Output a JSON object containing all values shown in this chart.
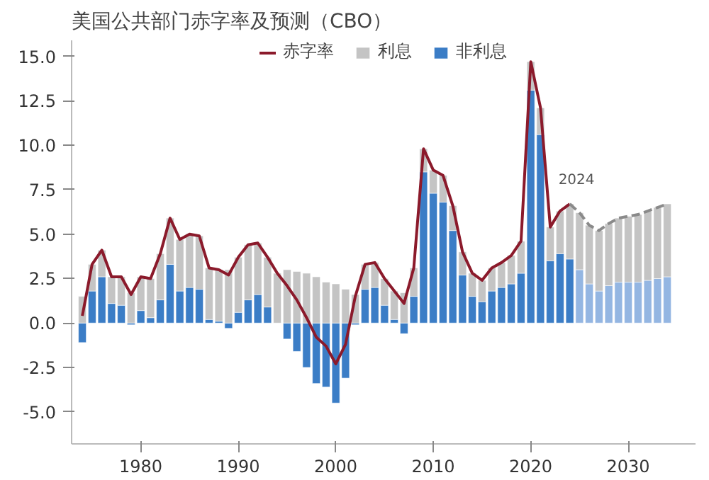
{
  "chart_data": {
    "type": "bar",
    "stacked": true,
    "title": "美国公共部门赤字率及预测（CBO）",
    "x": [
      1974,
      1975,
      1976,
      1977,
      1978,
      1979,
      1980,
      1981,
      1982,
      1983,
      1984,
      1985,
      1986,
      1987,
      1988,
      1989,
      1990,
      1991,
      1992,
      1993,
      1994,
      1995,
      1996,
      1997,
      1998,
      1999,
      2000,
      2001,
      2002,
      2003,
      2004,
      2005,
      2006,
      2007,
      2008,
      2009,
      2010,
      2011,
      2012,
      2013,
      2014,
      2015,
      2016,
      2017,
      2018,
      2019,
      2020,
      2021,
      2022,
      2023,
      2024,
      2025,
      2026,
      2027,
      2028,
      2029,
      2030,
      2031,
      2032,
      2033,
      2034
    ],
    "series": [
      {
        "name": "非利息",
        "color": "#3b7dc6",
        "colors": [
          "#3b7dc6",
          "#3b7dc6",
          "#3b7dc6",
          "#3b7dc6",
          "#3b7dc6",
          "#3b7dc6",
          "#3b7dc6",
          "#3b7dc6",
          "#3b7dc6",
          "#3b7dc6",
          "#3b7dc6",
          "#3b7dc6",
          "#3b7dc6",
          "#3b7dc6",
          "#3b7dc6",
          "#3b7dc6",
          "#3b7dc6",
          "#3b7dc6",
          "#3b7dc6",
          "#3b7dc6",
          "#3b7dc6",
          "#3b7dc6",
          "#3b7dc6",
          "#3b7dc6",
          "#3b7dc6",
          "#3b7dc6",
          "#3b7dc6",
          "#3b7dc6",
          "#3b7dc6",
          "#3b7dc6",
          "#3b7dc6",
          "#3b7dc6",
          "#3b7dc6",
          "#3b7dc6",
          "#3b7dc6",
          "#3b7dc6",
          "#3b7dc6",
          "#3b7dc6",
          "#3b7dc6",
          "#3b7dc6",
          "#3b7dc6",
          "#3b7dc6",
          "#3b7dc6",
          "#3b7dc6",
          "#3b7dc6",
          "#3b7dc6",
          "#3b7dc6",
          "#3b7dc6",
          "#3b7dc6",
          "#3b7dc6",
          "#3b7dc6",
          "#94b6e2",
          "#94b6e2",
          "#94b6e2",
          "#94b6e2",
          "#94b6e2",
          "#94b6e2",
          "#94b6e2",
          "#94b6e2",
          "#94b6e2",
          "#94b6e2"
        ],
        "values": [
          -1.1,
          1.8,
          2.6,
          1.1,
          1.0,
          -0.1,
          0.7,
          0.3,
          1.3,
          3.3,
          1.8,
          2.0,
          1.9,
          0.2,
          0.1,
          -0.3,
          0.6,
          1.3,
          1.6,
          0.9,
          0.0,
          -0.9,
          -1.6,
          -2.5,
          -3.4,
          -3.6,
          -4.5,
          -3.1,
          -0.1,
          1.9,
          2.0,
          1.0,
          0.2,
          -0.6,
          1.5,
          8.5,
          7.3,
          6.8,
          5.2,
          2.7,
          1.5,
          1.2,
          1.8,
          2.0,
          2.2,
          2.8,
          13.1,
          10.6,
          3.5,
          3.9,
          3.6,
          3.0,
          2.2,
          1.8,
          2.1,
          2.3,
          2.3,
          2.3,
          2.4,
          2.5,
          2.6
        ]
      },
      {
        "name": "利息",
        "color": "#c4c4c4",
        "values": [
          1.5,
          1.5,
          1.5,
          1.5,
          1.6,
          1.7,
          1.9,
          2.2,
          2.6,
          2.6,
          2.9,
          3.0,
          3.0,
          2.9,
          2.9,
          3.0,
          3.1,
          3.1,
          2.9,
          2.8,
          2.8,
          3.0,
          2.9,
          2.8,
          2.6,
          2.3,
          2.2,
          1.9,
          1.6,
          1.4,
          1.4,
          1.5,
          1.6,
          1.7,
          1.6,
          1.3,
          1.3,
          1.5,
          1.4,
          1.3,
          1.3,
          1.2,
          1.3,
          1.4,
          1.6,
          1.8,
          1.6,
          1.5,
          1.9,
          2.4,
          3.1,
          3.2,
          3.3,
          3.4,
          3.5,
          3.6,
          3.7,
          3.8,
          3.9,
          4.0,
          4.1
        ]
      },
      {
        "name": "赤字率",
        "type": "line",
        "color": "#8b1a2b",
        "line_style": "solid",
        "x": [
          1974,
          1975,
          1976,
          1977,
          1978,
          1979,
          1980,
          1981,
          1982,
          1983,
          1984,
          1985,
          1986,
          1987,
          1988,
          1989,
          1990,
          1991,
          1992,
          1993,
          1994,
          1995,
          1996,
          1997,
          1998,
          1999,
          2000,
          2001,
          2002,
          2003,
          2004,
          2005,
          2006,
          2007,
          2008,
          2009,
          2010,
          2011,
          2012,
          2013,
          2014,
          2015,
          2016,
          2017,
          2018,
          2019,
          2020,
          2021,
          2022,
          2023,
          2024
        ],
        "values": [
          0.4,
          3.3,
          4.1,
          2.6,
          2.6,
          1.6,
          2.6,
          2.5,
          3.9,
          5.9,
          4.7,
          5.0,
          4.9,
          3.1,
          3.0,
          2.7,
          3.7,
          4.4,
          4.5,
          3.7,
          2.8,
          2.1,
          1.3,
          0.3,
          -0.8,
          -1.3,
          -2.3,
          -1.2,
          1.5,
          3.3,
          3.4,
          2.5,
          1.8,
          1.1,
          3.1,
          9.8,
          8.6,
          8.3,
          6.6,
          4.0,
          2.8,
          2.4,
          3.1,
          3.4,
          3.8,
          4.6,
          14.7,
          12.1,
          5.4,
          6.3,
          6.7
        ]
      },
      {
        "type": "line",
        "color": "#8a8a8a",
        "line_style": "dashed",
        "x": [
          2024,
          2025,
          2026,
          2027,
          2028,
          2029,
          2030,
          2031,
          2032,
          2033,
          2034
        ],
        "values": [
          6.7,
          6.2,
          5.5,
          5.2,
          5.6,
          5.9,
          6.0,
          6.1,
          6.3,
          6.5,
          6.7
        ]
      }
    ],
    "annotations": [
      {
        "text": "2024",
        "x": 2024,
        "y": 6.7
      }
    ],
    "xlim": [
      1972.9,
      2036.9
    ],
    "xticks": [
      1980,
      1990,
      2000,
      2010,
      2020,
      2030
    ],
    "ylim": [
      -6.8,
      15.9
    ],
    "yticks": [
      {
        "value": -5,
        "label": "-5.0"
      },
      {
        "value": -2.5,
        "label": "-2.5"
      },
      {
        "value": 0,
        "label": "0.0"
      },
      {
        "value": 2.5,
        "label": "2.5"
      },
      {
        "value": 5,
        "label": "5.0"
      },
      {
        "value": 7.5,
        "label": "7.5"
      },
      {
        "value": 10,
        "label": "10.0"
      },
      {
        "value": 12.5,
        "label": "12.5"
      },
      {
        "value": 15,
        "label": "15.0"
      }
    ],
    "legend": "top",
    "grid": false
  }
}
